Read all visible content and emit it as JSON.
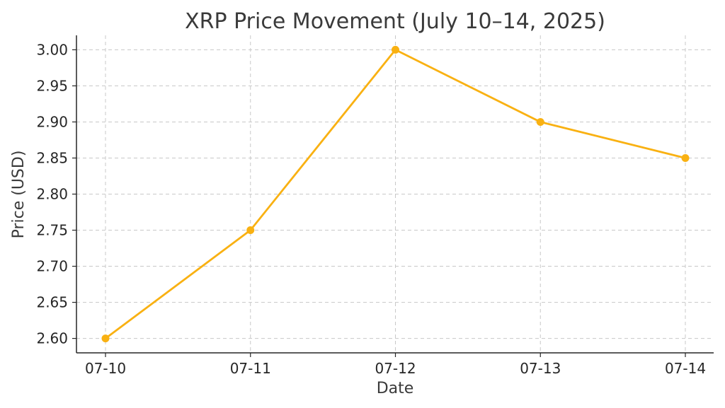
{
  "chart_data": {
    "type": "line",
    "title": "XRP Price Movement (July 10–14, 2025)",
    "xlabel": "Date",
    "ylabel": "Price (USD)",
    "categories": [
      "07-10",
      "07-11",
      "07-12",
      "07-13",
      "07-14"
    ],
    "series": [
      {
        "values": [
          2.6,
          2.75,
          3.0,
          2.9,
          2.85
        ],
        "color": "#f9b112",
        "marker": "circle"
      }
    ],
    "ylim": [
      2.58,
      3.02
    ],
    "yticks": [
      2.6,
      2.65,
      2.7,
      2.75,
      2.8,
      2.85,
      2.9,
      2.95,
      3.0
    ],
    "ytick_labels": [
      "2.60",
      "2.65",
      "2.70",
      "2.75",
      "2.80",
      "2.85",
      "2.90",
      "2.95",
      "3.00"
    ],
    "grid": true,
    "legend": "none"
  }
}
